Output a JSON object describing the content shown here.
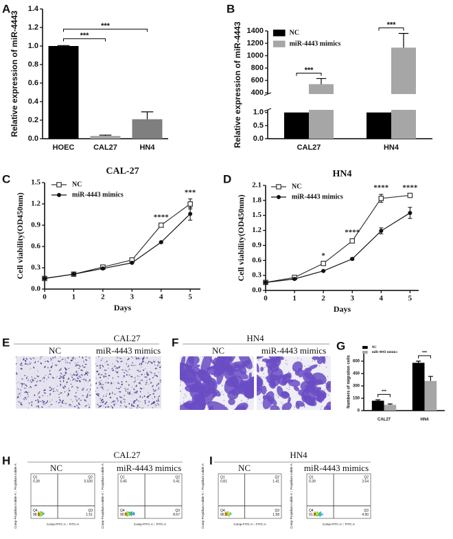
{
  "chart_data": [
    {
      "panel": "A",
      "type": "bar",
      "y_label": "Relative expression of miR-4443",
      "categories": [
        "HOEC",
        "CAL27",
        "HN4"
      ],
      "values": [
        1.0,
        0.03,
        0.21
      ],
      "errors": [
        0.005,
        0.008,
        0.08
      ],
      "colors": [
        "#000000",
        "#a6a6a6",
        "#7f7f7f"
      ],
      "ylim": [
        0,
        1.4
      ],
      "yticks": [
        {
          "value": 0,
          "label": "0.0"
        },
        {
          "value": 0.2,
          "label": "0.2"
        },
        {
          "value": 0.4,
          "label": "0.4"
        },
        {
          "value": 0.6,
          "label": "0.6"
        },
        {
          "value": 0.8,
          "label": "0.8"
        },
        {
          "value": 1,
          "label": "1.0"
        },
        {
          "value": 1.2,
          "label": "1.2"
        },
        {
          "value": 1.4,
          "label": "1.4"
        }
      ],
      "annotations": [
        {
          "text": "***",
          "between": [
            "HOEC",
            "CAL27"
          ]
        },
        {
          "text": "***",
          "between": [
            "HOEC",
            "HN4"
          ]
        }
      ]
    },
    {
      "panel": "B",
      "type": "bar",
      "y_label": "Relative expression of miR-4443",
      "categories": [
        "CAL27",
        "HN4"
      ],
      "series": [
        {
          "name": "NC",
          "color": "#000000",
          "values": [
            1.0,
            1.0
          ]
        },
        {
          "name": "miR-4443 mimics",
          "color": "#a6a6a6",
          "values": [
            540,
            1130
          ],
          "errors": [
            90,
            230
          ]
        }
      ],
      "ylim": [
        0,
        1400
      ],
      "ybreak": [
        1.1,
        380
      ],
      "yticks": [
        {
          "value": 0,
          "label": "0.0"
        },
        {
          "value": 0.5,
          "label": "0.5"
        },
        {
          "value": 1,
          "label": "1.0"
        },
        400,
        600,
        800,
        1000,
        1200,
        1400
      ],
      "legend": "upper left",
      "annotations": [
        {
          "text": "***",
          "category": "CAL27"
        },
        {
          "text": "***",
          "category": "HN4"
        }
      ]
    },
    {
      "panel": "C",
      "type": "line",
      "title": "CAL-27",
      "x_label": "Days",
      "y_label": "Cell viability(OD450nm)",
      "x": [
        0,
        1,
        2,
        3,
        4,
        5
      ],
      "series": [
        {
          "name": "NC",
          "color": "#333333",
          "marker": "open-square",
          "values": [
            0.15,
            0.21,
            0.31,
            0.41,
            0.9,
            1.2
          ],
          "errors": [
            0.01,
            0.01,
            0.02,
            0.02,
            0.02,
            0.07
          ]
        },
        {
          "name": "miR-4443 mimics",
          "color": "#111111",
          "marker": "filled-circle",
          "values": [
            0.15,
            0.21,
            0.29,
            0.37,
            0.66,
            1.06
          ],
          "errors": [
            0.01,
            0.01,
            0.01,
            0.01,
            0.01,
            0.09
          ]
        }
      ],
      "xlim": [
        0,
        5.35
      ],
      "xticks": [
        0,
        1,
        2,
        3,
        4,
        5
      ],
      "ylim": [
        0,
        1.5
      ],
      "yticks": [
        {
          "value": 0,
          "label": "0.0"
        },
        {
          "value": 0.3,
          "label": "0.3"
        },
        {
          "value": 0.6,
          "label": "0.6"
        },
        {
          "value": 0.9,
          "label": "0.9"
        },
        {
          "value": 1.2,
          "label": "1.2"
        },
        {
          "value": 1.5,
          "label": "1.5"
        }
      ],
      "legend": "upper left",
      "annotations": [
        {
          "x": 4,
          "text": "****"
        },
        {
          "x": 5,
          "text": "***"
        }
      ]
    },
    {
      "panel": "D",
      "type": "line",
      "title": "HN4",
      "x_label": "Days",
      "y_label": "Cell viability(OD450nm)",
      "x": [
        0,
        1,
        2,
        3,
        4,
        5
      ],
      "series": [
        {
          "name": "NC",
          "color": "#333333",
          "marker": "open-square",
          "values": [
            0.16,
            0.26,
            0.54,
            0.99,
            1.84,
            1.9
          ],
          "errors": [
            0.01,
            0.02,
            0.02,
            0.04,
            0.08,
            0.02
          ]
        },
        {
          "name": "miR-4443 mimics",
          "color": "#111111",
          "marker": "filled-circle",
          "values": [
            0.16,
            0.23,
            0.39,
            0.63,
            1.19,
            1.55
          ],
          "errors": [
            0.01,
            0.01,
            0.01,
            0.02,
            0.06,
            0.11
          ]
        }
      ],
      "xlim": [
        0,
        5.3
      ],
      "xticks": [
        0,
        1,
        2,
        3,
        4,
        5
      ],
      "ylim": [
        0,
        2.1
      ],
      "yticks": [
        {
          "value": 0,
          "label": "0.0"
        },
        {
          "value": 0.3,
          "label": "0.3"
        },
        {
          "value": 0.6,
          "label": "0.6"
        },
        {
          "value": 0.9,
          "label": "0.9"
        },
        {
          "value": 1.2,
          "label": "1.2"
        },
        {
          "value": 1.5,
          "label": "1.5"
        },
        {
          "value": 1.8,
          "label": "1.8"
        },
        {
          "value": 2.1,
          "label": "2.1"
        }
      ],
      "legend": "upper left",
      "annotations": [
        {
          "x": 2,
          "text": "*"
        },
        {
          "x": 3,
          "text": "****"
        },
        {
          "x": 4,
          "text": "****"
        },
        {
          "x": 5,
          "text": "****"
        }
      ]
    },
    {
      "panel": "G",
      "type": "bar",
      "y_label": "Numbers of migration cells",
      "categories": [
        "CAL27",
        "HN4"
      ],
      "series": [
        {
          "name": "NC",
          "color": "#000000",
          "values": [
            120,
            580
          ],
          "errors": [
            10,
            20
          ]
        },
        {
          "name": "miR-4443 mimics",
          "color": "#a6a6a6",
          "values": [
            70,
            360
          ],
          "errors": [
            10,
            55
          ]
        }
      ],
      "ylim": [
        0,
        700
      ],
      "yticks": [
        0,
        150,
        300,
        450,
        600
      ],
      "legend": "upper left",
      "annotations": [
        {
          "text": "***",
          "category": "CAL27"
        },
        {
          "text": "***",
          "category": "HN4"
        }
      ]
    }
  ],
  "micrographs": [
    {
      "panel": "E",
      "title": "CAL27",
      "images": [
        "NC",
        "miR-4443 mimics"
      ]
    },
    {
      "panel": "F",
      "title": "HN4",
      "images": [
        "NC",
        "miR-4443 mimics"
      ]
    }
  ],
  "flow_cytometry": [
    {
      "panel": "H",
      "title": "CAL27",
      "x_label": "Comp-FITC-A :: FITC-A",
      "y_label": "Comp-Propidium Iodide-A :: Propidium Iodide-A",
      "plots": [
        {
          "name": "NC",
          "quadrants": [
            {
              "name": "Q1",
              "value": "0.39"
            },
            {
              "name": "Q2",
              "value": "0.026"
            },
            {
              "name": "Q3",
              "value": "1.51"
            },
            {
              "name": "Q4",
              "value": "98.1"
            }
          ]
        },
        {
          "name": "miR-4443 mimics",
          "quadrants": [
            {
              "name": "Q1",
              "value": "0.45"
            },
            {
              "name": "Q2",
              "value": "0.41"
            },
            {
              "name": "Q3",
              "value": "8.67"
            },
            {
              "name": "Q4",
              "value": "90.5"
            }
          ]
        }
      ]
    },
    {
      "panel": "I",
      "title": "HN4",
      "x_label": "Comp-FITC-A :: FITC-A",
      "y_label": "Comp-Propidium Iodide-A :: Propidium Iodide-A",
      "plots": [
        {
          "name": "NC",
          "quadrants": [
            {
              "name": "Q1",
              "value": "0.81"
            },
            {
              "name": "Q2",
              "value": "1.41"
            },
            {
              "name": "Q3",
              "value": "1.58"
            },
            {
              "name": "Q4",
              "value": "96.2"
            }
          ]
        },
        {
          "name": "miR-4443 mimics",
          "quadrants": [
            {
              "name": "Q1",
              "value": "0.39"
            },
            {
              "name": "Q2",
              "value": "3.54"
            },
            {
              "name": "Q3",
              "value": "4.90"
            },
            {
              "name": "Q4",
              "value": "91.2"
            }
          ]
        }
      ]
    }
  ]
}
